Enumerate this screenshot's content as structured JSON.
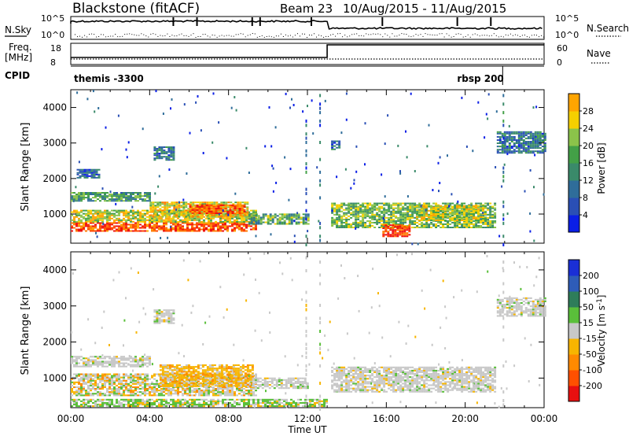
{
  "header": {
    "station": "Blackstone (fitACF)",
    "beam_label": "Beam 23",
    "date_range": "10/Aug/2015 - 11/Aug/2015"
  },
  "top_panel": {
    "nsky_label": "N.Sky",
    "nsearch_label": "N.Search",
    "freq_label": "Freq.",
    "freq_unit": "[MHz]",
    "nave_label": "Nave",
    "cpid_label": "CPID",
    "log_ticks": [
      "10^5",
      "10^0"
    ],
    "freq_ticks": [
      "18",
      "8"
    ],
    "nave_ticks": [
      "60",
      "0"
    ],
    "cpid_entries": [
      {
        "label": "themis -3300",
        "hour": 0.0
      },
      {
        "label": "rbsp 200",
        "hour": 21.9
      }
    ],
    "freq_step": {
      "from_hour": 0,
      "to_hour": 13.0,
      "low_mhz": 11,
      "high_mhz": 18
    },
    "nave_level": 12
  },
  "chart_data": [
    {
      "type": "heatmap",
      "panel": "power",
      "xlabel": "Time UT",
      "ylabel": "Slant Range [km]",
      "x_ticks": [
        "00:00",
        "04:00",
        "08:00",
        "12:00",
        "16:00",
        "20:00",
        "00:00"
      ],
      "x_range_hours": [
        0,
        24
      ],
      "y_ticks": [
        1000,
        2000,
        3000,
        4000
      ],
      "ylim": [
        180,
        4500
      ],
      "colorbar_label": "Power [dB]",
      "colorbar_ticks": [
        4,
        8,
        12,
        16,
        20,
        24,
        28
      ],
      "colorbar_colors": [
        "#0a1ee6",
        "#2a4fb5",
        "#2f6d9a",
        "#3a8a6a",
        "#43a047",
        "#8bc34a",
        "#f5d000",
        "#ffa500",
        "#ff7a00",
        "#ff4500",
        "#ee1010"
      ],
      "regions": [
        {
          "h0": 0.0,
          "h1": 9.4,
          "r0": 500,
          "r1": 760,
          "level": 0.85
        },
        {
          "h0": 0.0,
          "h1": 9.4,
          "r0": 760,
          "r1": 1100,
          "level": 0.55
        },
        {
          "h0": 0.0,
          "h1": 4.0,
          "r0": 1350,
          "r1": 1600,
          "level": 0.35
        },
        {
          "h0": 4.0,
          "h1": 9.0,
          "r0": 900,
          "r1": 1350,
          "level": 0.6
        },
        {
          "h0": 6.0,
          "h1": 8.8,
          "r0": 1000,
          "r1": 1250,
          "level": 0.85
        },
        {
          "h0": 9.0,
          "h1": 12.0,
          "r0": 700,
          "r1": 1000,
          "level": 0.4
        },
        {
          "h0": 13.2,
          "h1": 21.5,
          "r0": 600,
          "r1": 1300,
          "level": 0.45
        },
        {
          "h0": 15.8,
          "h1": 17.2,
          "r0": 350,
          "r1": 700,
          "level": 0.9
        },
        {
          "h0": 17.5,
          "h1": 21.0,
          "r0": 800,
          "r1": 1250,
          "level": 0.55
        },
        {
          "h0": 4.2,
          "h1": 5.2,
          "r0": 2500,
          "r1": 2900,
          "level": 0.25
        },
        {
          "h0": 13.2,
          "h1": 13.6,
          "r0": 2800,
          "r1": 3050,
          "level": 0.2
        },
        {
          "h0": 21.6,
          "h1": 24.0,
          "r0": 2700,
          "r1": 3300,
          "level": 0.25
        },
        {
          "h0": 0.3,
          "h1": 1.4,
          "r0": 2000,
          "r1": 2250,
          "level": 0.2
        }
      ]
    },
    {
      "type": "heatmap",
      "panel": "velocity",
      "xlabel": "Time UT",
      "ylabel": "Slant Range [km]",
      "x_ticks": [
        "00:00",
        "04:00",
        "08:00",
        "12:00",
        "16:00",
        "20:00",
        "00:00"
      ],
      "x_range_hours": [
        0,
        24
      ],
      "y_ticks": [
        1000,
        2000,
        3000,
        4000
      ],
      "ylim": [
        180,
        4500
      ],
      "colorbar_label": "Velocity [m s",
      "colorbar_label_sup": "-1",
      "colorbar_label_end": "]",
      "colorbar_ticks": [
        200,
        100,
        50,
        15,
        -15,
        -50,
        -100,
        -200
      ],
      "colorbar_colors": [
        "#1a2fd6",
        "#2e5cb8",
        "#2e7d5a",
        "#5abf3a",
        "#c8c8c8",
        "#f7b500",
        "#ff8a00",
        "#ff5000",
        "#e81010"
      ],
      "regions": [
        {
          "h0": 0.0,
          "h1": 9.4,
          "r0": 500,
          "r1": 1100,
          "kind": "mix"
        },
        {
          "h0": 4.5,
          "h1": 9.2,
          "r0": 750,
          "r1": 1350,
          "kind": "neg"
        },
        {
          "h0": 0.0,
          "h1": 4.0,
          "r0": 1300,
          "r1": 1600,
          "kind": "zero"
        },
        {
          "h0": 13.2,
          "h1": 21.5,
          "r0": 600,
          "r1": 1300,
          "kind": "zero"
        },
        {
          "h0": 9.2,
          "h1": 12.0,
          "r0": 700,
          "r1": 1000,
          "kind": "zero"
        },
        {
          "h0": 4.2,
          "h1": 5.2,
          "r0": 2500,
          "r1": 2900,
          "kind": "zero"
        },
        {
          "h0": 21.6,
          "h1": 24.0,
          "r0": 2700,
          "r1": 3200,
          "kind": "zero"
        },
        {
          "h0": 0.0,
          "h1": 13.0,
          "r0": 200,
          "r1": 400,
          "kind": "pos"
        }
      ]
    }
  ]
}
